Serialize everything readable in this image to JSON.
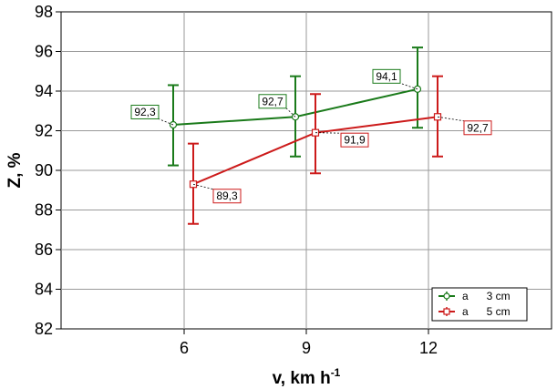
{
  "chart_data": {
    "type": "line",
    "xlabel": "v, km h",
    "xlabel_sup": "-1",
    "ylabel": "Z, %",
    "ylim": [
      82,
      98
    ],
    "yticks": [
      82,
      84,
      86,
      88,
      90,
      92,
      94,
      96,
      98
    ],
    "yticks_text": [
      "82",
      "84",
      "86",
      "88",
      "90",
      "92",
      "94",
      "96",
      "98"
    ],
    "x_categories": [
      "6",
      "9",
      "12"
    ],
    "grid": true,
    "legend_position": "bottom-right",
    "series": [
      {
        "name": "a      3 cm",
        "color": "#1a7a1a",
        "marker": "circle",
        "x": [
          6,
          9,
          12
        ],
        "values": [
          92.3,
          92.7,
          94.1
        ],
        "labels": [
          "92,3",
          "92,7",
          "94,1"
        ],
        "err_low": [
          90.25,
          90.7,
          92.15
        ],
        "err_high": [
          94.3,
          94.75,
          96.2
        ]
      },
      {
        "name": "a      5 cm",
        "color": "#cc1a1a",
        "marker": "square",
        "x": [
          6,
          9,
          12
        ],
        "values": [
          89.3,
          91.9,
          92.7
        ],
        "labels": [
          "89,3",
          "91,9",
          "92,7"
        ],
        "err_low": [
          87.3,
          89.85,
          90.7
        ],
        "err_high": [
          91.35,
          93.85,
          94.75
        ]
      }
    ]
  }
}
